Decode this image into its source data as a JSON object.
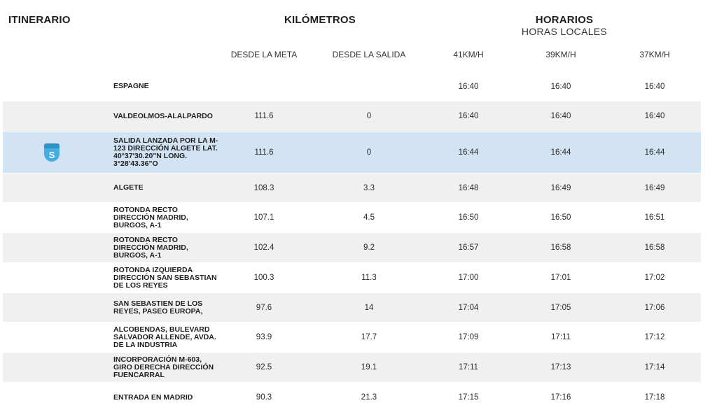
{
  "header": {
    "itinerario": "ITINERARIO",
    "kilometros": "KILÓMETROS",
    "horarios": "HORARIOS",
    "horas_locales": "HORAS LOCALES"
  },
  "columns": {
    "desde_meta": "DESDE LA META",
    "desde_salida": "DESDE LA SALIDA",
    "speed_41": "41KM/H",
    "speed_39": "39KM/H",
    "speed_37": "37KM/H"
  },
  "start_badge": "S",
  "rows": [
    {
      "place": "ESPAGNE",
      "meta": "",
      "salida": "",
      "t41": "16:40",
      "t39": "16:40",
      "t37": "16:40"
    },
    {
      "place": "VALDEOLMOS-ALALPARDO",
      "meta": "111.6",
      "salida": "0",
      "t41": "16:40",
      "t39": "16:40",
      "t37": "16:40"
    },
    {
      "place": "SALIDA LANZADA POR LA M-123 DIRECCIÓN ALGETE LAT. 40°37'30.20\"N LONG. 3°28'43.36\"O",
      "meta": "111.6",
      "salida": "0",
      "t41": "16:44",
      "t39": "16:44",
      "t37": "16:44"
    },
    {
      "place": "ALGETE",
      "meta": "108.3",
      "salida": "3.3",
      "t41": "16:48",
      "t39": "16:49",
      "t37": "16:49"
    },
    {
      "place": "ROTONDA RECTO DIRECCIÓN MADRID, BURGOS, A-1",
      "meta": "107.1",
      "salida": "4.5",
      "t41": "16:50",
      "t39": "16:50",
      "t37": "16:51"
    },
    {
      "place": "ROTONDA RECTO DIRECCIÓN MADRID, BURGOS, A-1",
      "meta": "102.4",
      "salida": "9.2",
      "t41": "16:57",
      "t39": "16:58",
      "t37": "16:58"
    },
    {
      "place": "ROTONDA IZQUIERDA DIRECCIÓN SAN SEBASTIAN DE LOS REYES",
      "meta": "100.3",
      "salida": "11.3",
      "t41": "17:00",
      "t39": "17:01",
      "t37": "17:02"
    },
    {
      "place": "SAN SEBASTIEN DE LOS REYES, PASEO EUROPA,",
      "meta": "97.6",
      "salida": "14",
      "t41": "17:04",
      "t39": "17:05",
      "t37": "17:06"
    },
    {
      "place": "ALCOBENDAS, BULEVARD SALVADOR ALLENDE, AVDA. DE LA INDUSTRIA",
      "meta": "93.9",
      "salida": "17.7",
      "t41": "17:09",
      "t39": "17:11",
      "t37": "17:12"
    },
    {
      "place": "INCORPORACIÓN M-603, GIRO DERECHA DIRECCIÓN FUENCARRAL",
      "meta": "92.5",
      "salida": "19.1",
      "t41": "17:11",
      "t39": "17:13",
      "t37": "17:14"
    },
    {
      "place": "ENTRADA EN MADRID",
      "meta": "90.3",
      "salida": "21.3",
      "t41": "17:15",
      "t39": "17:16",
      "t37": "17:18"
    }
  ]
}
